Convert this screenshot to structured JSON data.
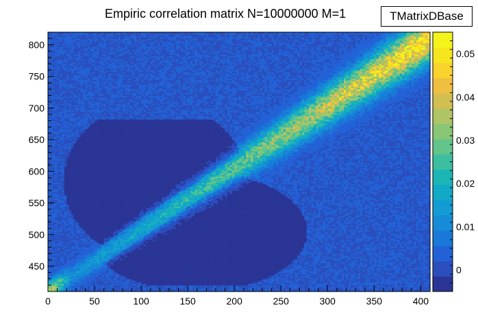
{
  "chart": {
    "title": "Empiric correlation matrix N=10000000 M=1",
    "stat_label": "TMatrixDBase"
  },
  "chart_data": {
    "type": "heatmap",
    "title": "Empiric correlation matrix N=10000000 M=1",
    "xlim": [
      0,
      410
    ],
    "ylim": [
      410,
      820
    ],
    "x_ticks": [
      0,
      50,
      100,
      150,
      200,
      250,
      300,
      350,
      400
    ],
    "y_ticks": [
      450,
      500,
      550,
      600,
      650,
      700,
      750,
      800
    ],
    "color_scale": {
      "range": [
        -0.005,
        0.055
      ],
      "ticks": [
        0,
        0.01,
        0.02,
        0.03,
        0.04,
        0.05
      ],
      "colors": [
        "#2b3595",
        "#2a4fbd",
        "#2262d6",
        "#1978d8",
        "#168bd6",
        "#139bd3",
        "#11a9c7",
        "#1cb5b5",
        "#3dbea0",
        "#63c48b",
        "#89c676",
        "#afc464",
        "#d2bf52",
        "#f0bf40",
        "#fbd32e",
        "#f7e51e",
        "#f4f31a"
      ]
    },
    "grid": false,
    "legend": "right colorbar"
  }
}
